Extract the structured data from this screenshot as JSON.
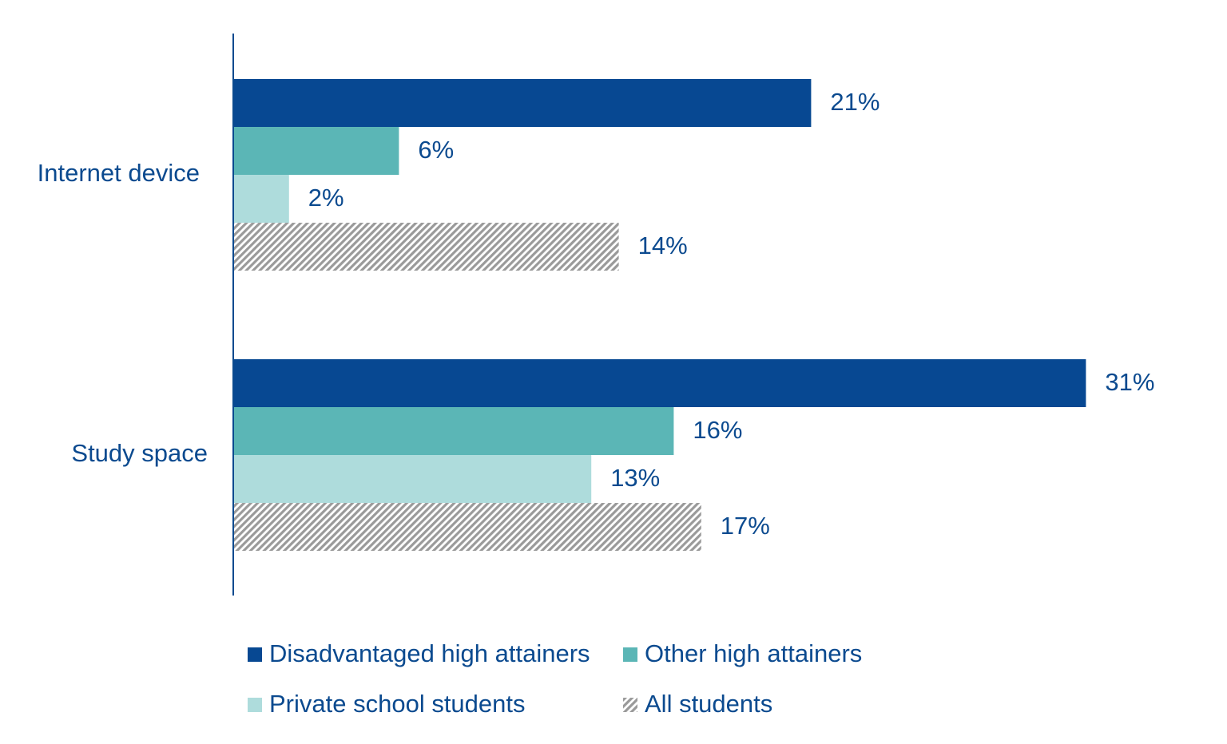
{
  "chart_data": {
    "type": "bar",
    "orientation": "horizontal",
    "categories": [
      "Internet device",
      "Study space"
    ],
    "series": [
      {
        "name": "Disadvantaged high attainers",
        "values": [
          21,
          31
        ],
        "color": "#074892",
        "pattern": "solid"
      },
      {
        "name": "Other high attainers",
        "values": [
          6,
          16
        ],
        "color": "#5bb6b6",
        "pattern": "solid"
      },
      {
        "name": "Private school students",
        "values": [
          2,
          13
        ],
        "color": "#aedcdc",
        "pattern": "solid"
      },
      {
        "name": "All students",
        "values": [
          14,
          17
        ],
        "color": "#9a9a9a",
        "pattern": "hatched"
      }
    ],
    "value_suffix": "%",
    "title": "",
    "xlabel": "",
    "ylabel": "",
    "xlim": [
      0,
      35
    ],
    "grid": false,
    "legend_position": "bottom"
  }
}
